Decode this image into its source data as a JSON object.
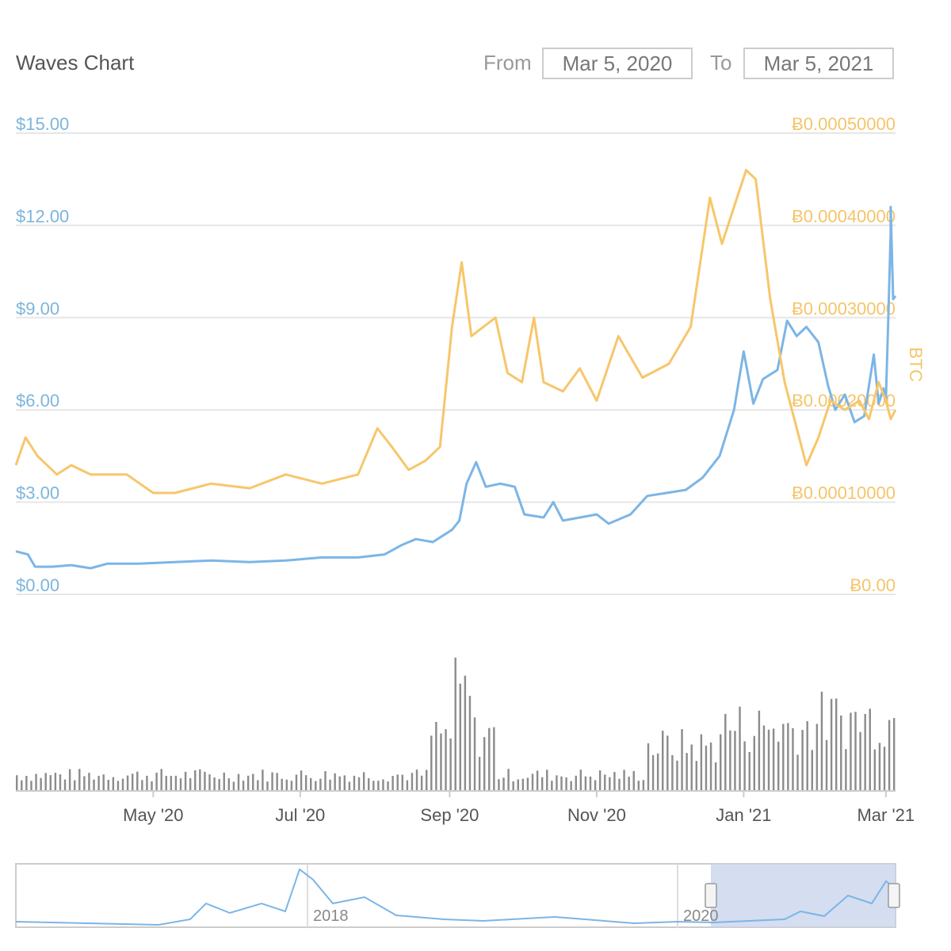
{
  "header": {
    "title": "Waves Chart",
    "from_label": "From",
    "from_value": "Mar 5, 2020",
    "to_label": "To",
    "to_value": "Mar 5, 2021"
  },
  "colors": {
    "usd_line": "#7cb5e6",
    "btc_line": "#f7c66b",
    "volume_bar": "#8c8c8c",
    "gridline": "#e6e6e6",
    "navigator_selection": "#c9d6ec"
  },
  "chart_data": {
    "type": "line",
    "title": "Waves Chart",
    "y_left": {
      "ticks": [
        "$0.00",
        "$3.00",
        "$6.00",
        "$9.00",
        "$12.00",
        "$15.00"
      ],
      "range": [
        0,
        15
      ]
    },
    "y_right": {
      "label": "BTC",
      "ticks": [
        "Ƀ0.00",
        "Ƀ0.00010000",
        "Ƀ0.00020000",
        "Ƀ0.00030000",
        "Ƀ0.00040000",
        "Ƀ0.00050000"
      ],
      "range": [
        0,
        0.0005
      ]
    },
    "x_ticks": [
      "May '20",
      "Jul '20",
      "Sep '20",
      "Nov '20",
      "Jan '21",
      "Mar '21"
    ],
    "x_range": [
      "2020-03-05",
      "2021-03-05"
    ],
    "grid": true,
    "series": [
      {
        "name": "USD",
        "axis": "left",
        "points": [
          [
            "2020-03-05",
            1.4
          ],
          [
            "2020-03-10",
            1.3
          ],
          [
            "2020-03-13",
            0.9
          ],
          [
            "2020-03-20",
            0.9
          ],
          [
            "2020-03-28",
            0.95
          ],
          [
            "2020-04-05",
            0.85
          ],
          [
            "2020-04-12",
            1.0
          ],
          [
            "2020-04-25",
            1.0
          ],
          [
            "2020-05-10",
            1.05
          ],
          [
            "2020-05-25",
            1.1
          ],
          [
            "2020-06-10",
            1.05
          ],
          [
            "2020-06-25",
            1.1
          ],
          [
            "2020-07-10",
            1.2
          ],
          [
            "2020-07-25",
            1.2
          ],
          [
            "2020-08-05",
            1.3
          ],
          [
            "2020-08-12",
            1.6
          ],
          [
            "2020-08-18",
            1.8
          ],
          [
            "2020-08-25",
            1.7
          ],
          [
            "2020-09-02",
            2.1
          ],
          [
            "2020-09-05",
            2.4
          ],
          [
            "2020-09-08",
            3.6
          ],
          [
            "2020-09-12",
            4.3
          ],
          [
            "2020-09-16",
            3.5
          ],
          [
            "2020-09-22",
            3.6
          ],
          [
            "2020-09-28",
            3.5
          ],
          [
            "2020-10-02",
            2.6
          ],
          [
            "2020-10-10",
            2.5
          ],
          [
            "2020-10-14",
            3.0
          ],
          [
            "2020-10-18",
            2.4
          ],
          [
            "2020-10-25",
            2.5
          ],
          [
            "2020-11-01",
            2.6
          ],
          [
            "2020-11-06",
            2.3
          ],
          [
            "2020-11-15",
            2.6
          ],
          [
            "2020-11-22",
            3.2
          ],
          [
            "2020-11-30",
            3.3
          ],
          [
            "2020-12-08",
            3.4
          ],
          [
            "2020-12-15",
            3.8
          ],
          [
            "2020-12-22",
            4.5
          ],
          [
            "2020-12-28",
            6.0
          ],
          [
            "2021-01-01",
            7.9
          ],
          [
            "2021-01-05",
            6.2
          ],
          [
            "2021-01-09",
            7.0
          ],
          [
            "2021-01-15",
            7.3
          ],
          [
            "2021-01-19",
            8.9
          ],
          [
            "2021-01-23",
            8.4
          ],
          [
            "2021-01-27",
            8.7
          ],
          [
            "2021-02-01",
            8.2
          ],
          [
            "2021-02-05",
            6.8
          ],
          [
            "2021-02-08",
            6.0
          ],
          [
            "2021-02-12",
            6.5
          ],
          [
            "2021-02-16",
            5.6
          ],
          [
            "2021-02-20",
            5.8
          ],
          [
            "2021-02-24",
            7.8
          ],
          [
            "2021-02-26",
            6.2
          ],
          [
            "2021-02-28",
            6.7
          ],
          [
            "2021-03-01",
            6.3
          ],
          [
            "2021-03-02",
            9.0
          ],
          [
            "2021-03-03",
            11.8
          ],
          [
            "2021-03-03",
            12.6
          ],
          [
            "2021-03-04",
            9.6
          ],
          [
            "2021-03-05",
            9.7
          ]
        ]
      },
      {
        "name": "BTC",
        "axis": "right",
        "points": [
          [
            "2020-03-05",
            0.00014
          ],
          [
            "2020-03-09",
            0.00017
          ],
          [
            "2020-03-14",
            0.00015
          ],
          [
            "2020-03-22",
            0.00013
          ],
          [
            "2020-03-28",
            0.00014
          ],
          [
            "2020-04-05",
            0.00013
          ],
          [
            "2020-04-20",
            0.00013
          ],
          [
            "2020-05-01",
            0.00011
          ],
          [
            "2020-05-10",
            0.00011
          ],
          [
            "2020-05-25",
            0.00012
          ],
          [
            "2020-06-10",
            0.000115
          ],
          [
            "2020-06-25",
            0.00013
          ],
          [
            "2020-07-10",
            0.00012
          ],
          [
            "2020-07-25",
            0.00013
          ],
          [
            "2020-08-02",
            0.00018
          ],
          [
            "2020-08-08",
            0.00016
          ],
          [
            "2020-08-15",
            0.000135
          ],
          [
            "2020-08-22",
            0.000145
          ],
          [
            "2020-08-28",
            0.00016
          ],
          [
            "2020-09-02",
            0.00029
          ],
          [
            "2020-09-06",
            0.00036
          ],
          [
            "2020-09-10",
            0.00028
          ],
          [
            "2020-09-15",
            0.00029
          ],
          [
            "2020-09-20",
            0.0003
          ],
          [
            "2020-09-25",
            0.00024
          ],
          [
            "2020-10-01",
            0.00023
          ],
          [
            "2020-10-06",
            0.0003
          ],
          [
            "2020-10-10",
            0.00023
          ],
          [
            "2020-10-18",
            0.00022
          ],
          [
            "2020-10-25",
            0.000245
          ],
          [
            "2020-11-01",
            0.00021
          ],
          [
            "2020-11-10",
            0.00028
          ],
          [
            "2020-11-20",
            0.000235
          ],
          [
            "2020-12-01",
            0.00025
          ],
          [
            "2020-12-10",
            0.00029
          ],
          [
            "2020-12-18",
            0.00043
          ],
          [
            "2020-12-23",
            0.00038
          ],
          [
            "2020-12-28",
            0.00042
          ],
          [
            "2021-01-02",
            0.00046
          ],
          [
            "2021-01-06",
            0.00045
          ],
          [
            "2021-01-12",
            0.00032
          ],
          [
            "2021-01-18",
            0.00023
          ],
          [
            "2021-01-22",
            0.00019
          ],
          [
            "2021-01-27",
            0.00014
          ],
          [
            "2021-02-01",
            0.00017
          ],
          [
            "2021-02-06",
            0.00021
          ],
          [
            "2021-02-12",
            0.0002
          ],
          [
            "2021-02-18",
            0.00021
          ],
          [
            "2021-02-22",
            0.00019
          ],
          [
            "2021-02-26",
            0.00023
          ],
          [
            "2021-03-01",
            0.00021
          ],
          [
            "2021-03-03",
            0.00019
          ],
          [
            "2021-03-05",
            0.0002
          ]
        ]
      }
    ],
    "volume": {
      "note": "daily volume bars, unlabeled axis",
      "max_relative": 1.0
    },
    "navigator": {
      "ticks": [
        "2018",
        "2020"
      ],
      "selected_range": [
        "2020-03-05",
        "2021-03-05"
      ]
    }
  }
}
